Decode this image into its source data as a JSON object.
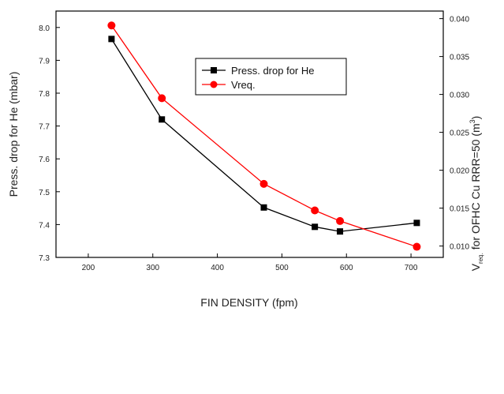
{
  "chart_data": {
    "type": "line",
    "x": [
      236,
      314,
      472,
      551,
      590,
      709
    ],
    "xlabel": "FIN DENSITY (fpm)",
    "xlim": [
      150,
      750
    ],
    "xticks": [
      200,
      300,
      400,
      500,
      600,
      700
    ],
    "grid": false,
    "legend_position": "top-center",
    "left_axis": {
      "label": "Press. drop for He (mbar)",
      "ylim": [
        7.3,
        8.05
      ],
      "ticks": [
        "7.3",
        "7.4",
        "7.5",
        "7.6",
        "7.7",
        "7.8",
        "7.9",
        "8.0"
      ]
    },
    "right_axis": {
      "label_main": "V",
      "label_sub": "req.",
      "label_rest": " for OFHC Cu RRR=50  (m",
      "label_sup": "3",
      "label_end": ")",
      "ylim": [
        0.0085,
        0.041
      ],
      "ticks": [
        "0.010",
        "0.015",
        "0.020",
        "0.025",
        "0.030",
        "0.035",
        "0.040"
      ]
    },
    "series": [
      {
        "name": "Press. drop for He",
        "axis": "left",
        "color": "#000000",
        "marker": "square",
        "values": [
          7.965,
          7.72,
          7.452,
          7.393,
          7.379,
          7.405
        ]
      },
      {
        "name": "Vreq.",
        "axis": "right",
        "color": "#ff0000",
        "marker": "circle",
        "values": [
          0.0391,
          0.0295,
          0.0182,
          0.0147,
          0.0133,
          0.0099
        ]
      }
    ]
  }
}
